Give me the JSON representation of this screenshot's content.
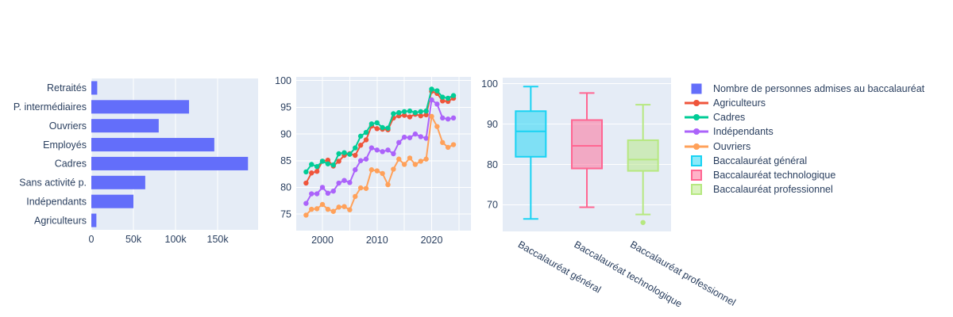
{
  "title": "",
  "colors": {
    "plot_background": "#e5ecf6",
    "grid": "#ffffff",
    "text": "#2a3f5f",
    "bar_blue": "#636efa",
    "agriculteurs_red": "#ef553b",
    "cadres_green": "#00cc96",
    "independants_purple": "#ab63fa",
    "ouvriers_orange": "#ffa15a",
    "bac_general_cyan": "#19d3f3",
    "bac_technologique_pink": "#ff6692",
    "bac_professionnel_green": "#b6e880"
  },
  "legend": {
    "items": [
      {
        "label": "Nombre de personnes admises au baccalauréat",
        "marker": "square-filled",
        "color": "#636efa"
      },
      {
        "label": "Agriculteurs",
        "marker": "line-dot",
        "color": "#ef553b"
      },
      {
        "label": "Cadres",
        "marker": "line-dot",
        "color": "#00cc96"
      },
      {
        "label": "Indépendants",
        "marker": "line-dot",
        "color": "#ab63fa"
      },
      {
        "label": "Ouvriers",
        "marker": "line-dot",
        "color": "#ffa15a"
      },
      {
        "label": "Baccalauréat général",
        "marker": "square-outline",
        "color": "#19d3f3"
      },
      {
        "label": "Baccalauréat technologique",
        "marker": "square-outline",
        "color": "#ff6692"
      },
      {
        "label": "Baccalauréat professionnel",
        "marker": "square-outline",
        "color": "#b6e880"
      }
    ]
  },
  "chart_data": [
    {
      "type": "bar",
      "name": "Nombre de personnes admises au baccalauréat",
      "orientation": "horizontal",
      "categories": [
        "Retraités",
        "P. intermédiaires",
        "Ouvriers",
        "Employés",
        "Cadres",
        "Sans activité p.",
        "Indépendants",
        "Agriculteurs"
      ],
      "values": [
        7000,
        116000,
        80000,
        146000,
        186000,
        64000,
        50000,
        6000
      ],
      "bar_color": "#636efa",
      "xticks": [
        {
          "value": 0,
          "label": "0"
        },
        {
          "value": 50000,
          "label": "50k"
        },
        {
          "value": 100000,
          "label": "100k"
        },
        {
          "value": 150000,
          "label": "150k"
        }
      ],
      "xlim": [
        0,
        198000
      ],
      "grid": true
    },
    {
      "type": "line",
      "x": [
        1997,
        1998,
        1999,
        2000,
        2001,
        2002,
        2003,
        2004,
        2005,
        2006,
        2007,
        2008,
        2009,
        2010,
        2011,
        2012,
        2013,
        2014,
        2015,
        2016,
        2017,
        2018,
        2019,
        2020,
        2021,
        2022,
        2023,
        2024
      ],
      "series": [
        {
          "name": "Agriculteurs",
          "color": "#ef553b",
          "values": [
            80.8,
            82.7,
            83.0,
            84.9,
            85.1,
            84.0,
            84.9,
            86.0,
            86.3,
            86.0,
            87.9,
            88.9,
            91.5,
            91.0,
            90.9,
            90.8,
            93.0,
            93.4,
            93.5,
            93.2,
            93.7,
            93.4,
            93.6,
            98.0,
            97.6,
            96.2,
            96.1,
            96.7
          ]
        },
        {
          "name": "Cadres",
          "color": "#00cc96",
          "values": [
            82.9,
            84.3,
            83.9,
            84.9,
            84.4,
            84.2,
            86.3,
            86.5,
            86.2,
            87.4,
            89.6,
            90.3,
            91.9,
            92.1,
            91.2,
            91.1,
            93.8,
            94.0,
            94.2,
            94.3,
            94.0,
            94.2,
            94.3,
            98.4,
            98.1,
            96.9,
            96.7,
            97.2
          ]
        },
        {
          "name": "Indépendants",
          "color": "#ab63fa",
          "values": [
            77.0,
            78.8,
            78.8,
            80.0,
            78.9,
            79.3,
            80.8,
            81.3,
            80.9,
            83.3,
            85.0,
            85.3,
            87.4,
            87.0,
            86.7,
            87.0,
            86.3,
            88.4,
            89.4,
            89.3,
            90.0,
            89.5,
            89.2,
            96.4,
            95.6,
            93.0,
            92.8,
            93.0
          ]
        },
        {
          "name": "Ouvriers",
          "color": "#ffa15a",
          "values": [
            74.8,
            75.9,
            76.0,
            76.8,
            75.9,
            75.5,
            76.3,
            76.4,
            75.8,
            78.3,
            79.9,
            79.8,
            83.3,
            83.1,
            82.6,
            80.5,
            83.4,
            85.3,
            84.3,
            85.5,
            84.3,
            84.9,
            85.3,
            93.3,
            91.4,
            88.4,
            87.5,
            88.0
          ]
        }
      ],
      "xticks": [
        2000,
        2010,
        2020
      ],
      "grid_x": [
        2000,
        2005,
        2010,
        2015,
        2020,
        2025
      ],
      "yticks": [
        75,
        80,
        85,
        90,
        95,
        100
      ],
      "xlim": [
        1995.2,
        2027.2
      ],
      "ylim": [
        71.9,
        100.7
      ],
      "grid": true
    },
    {
      "type": "box",
      "boxes": [
        {
          "label": "Baccalauréat général",
          "color": "#19d3f3",
          "min": 66.5,
          "q1": 81.9,
          "median": 88.2,
          "q3": 93.2,
          "max": 99.3,
          "outliers": []
        },
        {
          "label": "Baccalauréat technologique",
          "color": "#ff6692",
          "min": 69.4,
          "q1": 79.0,
          "median": 84.6,
          "q3": 91.0,
          "max": 97.7,
          "outliers": []
        },
        {
          "label": "Baccalauréat professionnel",
          "color": "#b6e880",
          "min": 67.6,
          "q1": 78.4,
          "median": 81.2,
          "q3": 86.0,
          "max": 94.8,
          "outliers": [
            65.6
          ]
        }
      ],
      "yticks": [
        70,
        80,
        90,
        100
      ],
      "ylim": [
        63.4,
        101.5
      ],
      "xlabel_angle": 30,
      "grid": true
    }
  ]
}
